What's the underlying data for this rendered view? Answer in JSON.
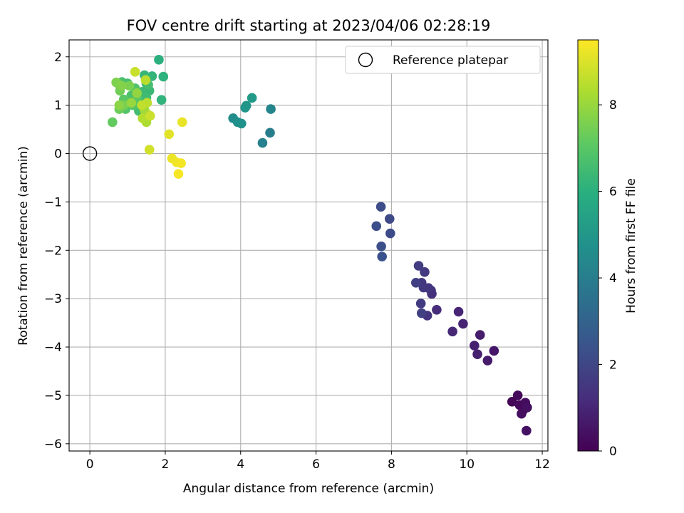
{
  "chart_data": {
    "type": "scatter",
    "title": "FOV centre drift starting at 2023/04/06 02:28:19",
    "xlabel": "Angular distance from reference (arcmin)",
    "ylabel": "Rotation from reference (arcmin)",
    "xlim": [
      -0.55,
      12.15
    ],
    "ylim": [
      -6.15,
      2.35
    ],
    "xticks": [
      0,
      2,
      4,
      6,
      8,
      10,
      12
    ],
    "yticks": [
      2,
      1,
      0,
      -1,
      -2,
      -3,
      -4,
      -5,
      -6
    ],
    "grid": true,
    "legend": {
      "placement": "top-right",
      "entries": [
        "Reference platepar"
      ]
    },
    "reference_point": {
      "x": 0,
      "y": 0,
      "label": "Reference platepar"
    },
    "colorbar": {
      "label": "Hours from first FF file",
      "colormap": "viridis",
      "range": [
        0,
        9.5
      ],
      "ticks": [
        0,
        2,
        4,
        6,
        8
      ]
    },
    "colormap_stops": [
      "#440154",
      "#472d7b",
      "#3b528b",
      "#2c728e",
      "#21918c",
      "#28ae80",
      "#5ec962",
      "#addc30",
      "#fde725"
    ],
    "points": [
      {
        "x": 11.2,
        "y": -5.13,
        "h": 0.1
      },
      {
        "x": 11.35,
        "y": -5.0,
        "h": 0.15
      },
      {
        "x": 11.4,
        "y": -5.2,
        "h": 0.2
      },
      {
        "x": 11.5,
        "y": -5.3,
        "h": 0.25
      },
      {
        "x": 11.55,
        "y": -5.15,
        "h": 0.3
      },
      {
        "x": 11.45,
        "y": -5.38,
        "h": 0.35
      },
      {
        "x": 11.6,
        "y": -5.25,
        "h": 0.4
      },
      {
        "x": 11.58,
        "y": -5.73,
        "h": 0.45
      },
      {
        "x": 10.72,
        "y": -4.08,
        "h": 0.6
      },
      {
        "x": 10.55,
        "y": -4.28,
        "h": 0.7
      },
      {
        "x": 10.35,
        "y": -3.75,
        "h": 0.75
      },
      {
        "x": 10.28,
        "y": -4.15,
        "h": 0.8
      },
      {
        "x": 10.2,
        "y": -3.97,
        "h": 0.85
      },
      {
        "x": 9.9,
        "y": -3.52,
        "h": 0.95
      },
      {
        "x": 9.78,
        "y": -3.27,
        "h": 1.0
      },
      {
        "x": 9.62,
        "y": -3.68,
        "h": 1.05
      },
      {
        "x": 9.2,
        "y": -3.23,
        "h": 1.2
      },
      {
        "x": 9.07,
        "y": -2.9,
        "h": 1.3
      },
      {
        "x": 9.05,
        "y": -2.83,
        "h": 1.35
      },
      {
        "x": 8.95,
        "y": -3.35,
        "h": 1.4
      },
      {
        "x": 8.98,
        "y": -2.78,
        "h": 1.45
      },
      {
        "x": 8.8,
        "y": -2.67,
        "h": 1.5
      },
      {
        "x": 8.85,
        "y": -2.77,
        "h": 1.55
      },
      {
        "x": 8.88,
        "y": -2.45,
        "h": 1.6
      },
      {
        "x": 8.78,
        "y": -3.1,
        "h": 1.65
      },
      {
        "x": 8.72,
        "y": -2.32,
        "h": 1.7
      },
      {
        "x": 8.65,
        "y": -2.67,
        "h": 1.75
      },
      {
        "x": 8.8,
        "y": -3.3,
        "h": 1.8
      },
      {
        "x": 7.95,
        "y": -1.35,
        "h": 2.1
      },
      {
        "x": 7.97,
        "y": -1.65,
        "h": 2.15
      },
      {
        "x": 7.72,
        "y": -1.1,
        "h": 2.2
      },
      {
        "x": 7.6,
        "y": -1.5,
        "h": 2.25
      },
      {
        "x": 7.73,
        "y": -1.92,
        "h": 2.3
      },
      {
        "x": 7.75,
        "y": -2.13,
        "h": 2.35
      },
      {
        "x": 4.78,
        "y": 0.43,
        "h": 4.0
      },
      {
        "x": 4.58,
        "y": 0.22,
        "h": 4.1
      },
      {
        "x": 4.8,
        "y": 0.92,
        "h": 4.3
      },
      {
        "x": 3.8,
        "y": 0.73,
        "h": 4.6
      },
      {
        "x": 3.92,
        "y": 0.65,
        "h": 4.7
      },
      {
        "x": 4.02,
        "y": 0.62,
        "h": 4.8
      },
      {
        "x": 4.12,
        "y": 0.95,
        "h": 4.9
      },
      {
        "x": 4.15,
        "y": 0.99,
        "h": 5.0
      },
      {
        "x": 4.3,
        "y": 1.15,
        "h": 5.1
      },
      {
        "x": 1.83,
        "y": 1.94,
        "h": 6.0
      },
      {
        "x": 1.95,
        "y": 1.59,
        "h": 6.1
      },
      {
        "x": 1.9,
        "y": 1.11,
        "h": 6.15
      },
      {
        "x": 1.65,
        "y": 1.6,
        "h": 6.2
      },
      {
        "x": 1.5,
        "y": 1.45,
        "h": 6.25
      },
      {
        "x": 1.45,
        "y": 1.62,
        "h": 6.3
      },
      {
        "x": 1.58,
        "y": 1.3,
        "h": 6.35
      },
      {
        "x": 1.4,
        "y": 1.28,
        "h": 6.4
      },
      {
        "x": 1.35,
        "y": 1.1,
        "h": 6.45
      },
      {
        "x": 1.5,
        "y": 1.15,
        "h": 6.5
      },
      {
        "x": 1.3,
        "y": 0.88,
        "h": 6.55
      },
      {
        "x": 1.55,
        "y": 1.42,
        "h": 6.6
      },
      {
        "x": 1.0,
        "y": 1.45,
        "h": 6.65
      },
      {
        "x": 0.85,
        "y": 1.48,
        "h": 6.7
      },
      {
        "x": 1.1,
        "y": 1.2,
        "h": 6.75
      },
      {
        "x": 1.2,
        "y": 1.35,
        "h": 6.8
      },
      {
        "x": 1.05,
        "y": 1.05,
        "h": 6.85
      },
      {
        "x": 0.95,
        "y": 0.92,
        "h": 6.9
      },
      {
        "x": 1.15,
        "y": 1.0,
        "h": 6.95
      },
      {
        "x": 1.25,
        "y": 1.15,
        "h": 7.0
      },
      {
        "x": 0.9,
        "y": 1.12,
        "h": 7.05
      },
      {
        "x": 0.75,
        "y": 1.45,
        "h": 7.15
      },
      {
        "x": 0.6,
        "y": 0.65,
        "h": 7.2
      },
      {
        "x": 0.78,
        "y": 0.92,
        "h": 7.3
      },
      {
        "x": 0.8,
        "y": 1.3,
        "h": 7.4
      },
      {
        "x": 0.9,
        "y": 1.0,
        "h": 7.5
      },
      {
        "x": 1.05,
        "y": 1.4,
        "h": 7.55
      },
      {
        "x": 0.7,
        "y": 1.47,
        "h": 7.6
      },
      {
        "x": 0.85,
        "y": 1.4,
        "h": 7.7
      },
      {
        "x": 0.78,
        "y": 1.0,
        "h": 7.8
      },
      {
        "x": 1.25,
        "y": 1.25,
        "h": 7.9
      },
      {
        "x": 1.1,
        "y": 1.05,
        "h": 8.0
      },
      {
        "x": 1.45,
        "y": 0.9,
        "h": 8.1
      },
      {
        "x": 1.55,
        "y": 0.8,
        "h": 8.2
      },
      {
        "x": 1.5,
        "y": 0.65,
        "h": 8.3
      },
      {
        "x": 1.4,
        "y": 0.73,
        "h": 8.4
      },
      {
        "x": 1.48,
        "y": 1.52,
        "h": 8.5
      },
      {
        "x": 1.52,
        "y": 1.05,
        "h": 8.55
      },
      {
        "x": 1.38,
        "y": 1.0,
        "h": 8.6
      },
      {
        "x": 1.2,
        "y": 1.69,
        "h": 8.7
      },
      {
        "x": 1.6,
        "y": 0.78,
        "h": 8.75
      },
      {
        "x": 1.58,
        "y": 0.08,
        "h": 8.85
      },
      {
        "x": 2.1,
        "y": 0.4,
        "h": 9.1
      },
      {
        "x": 2.45,
        "y": 0.65,
        "h": 9.2
      },
      {
        "x": 2.18,
        "y": -0.1,
        "h": 9.25
      },
      {
        "x": 2.3,
        "y": -0.18,
        "h": 9.3
      },
      {
        "x": 2.42,
        "y": -0.2,
        "h": 9.35
      },
      {
        "x": 2.35,
        "y": -0.42,
        "h": 9.4
      }
    ]
  }
}
